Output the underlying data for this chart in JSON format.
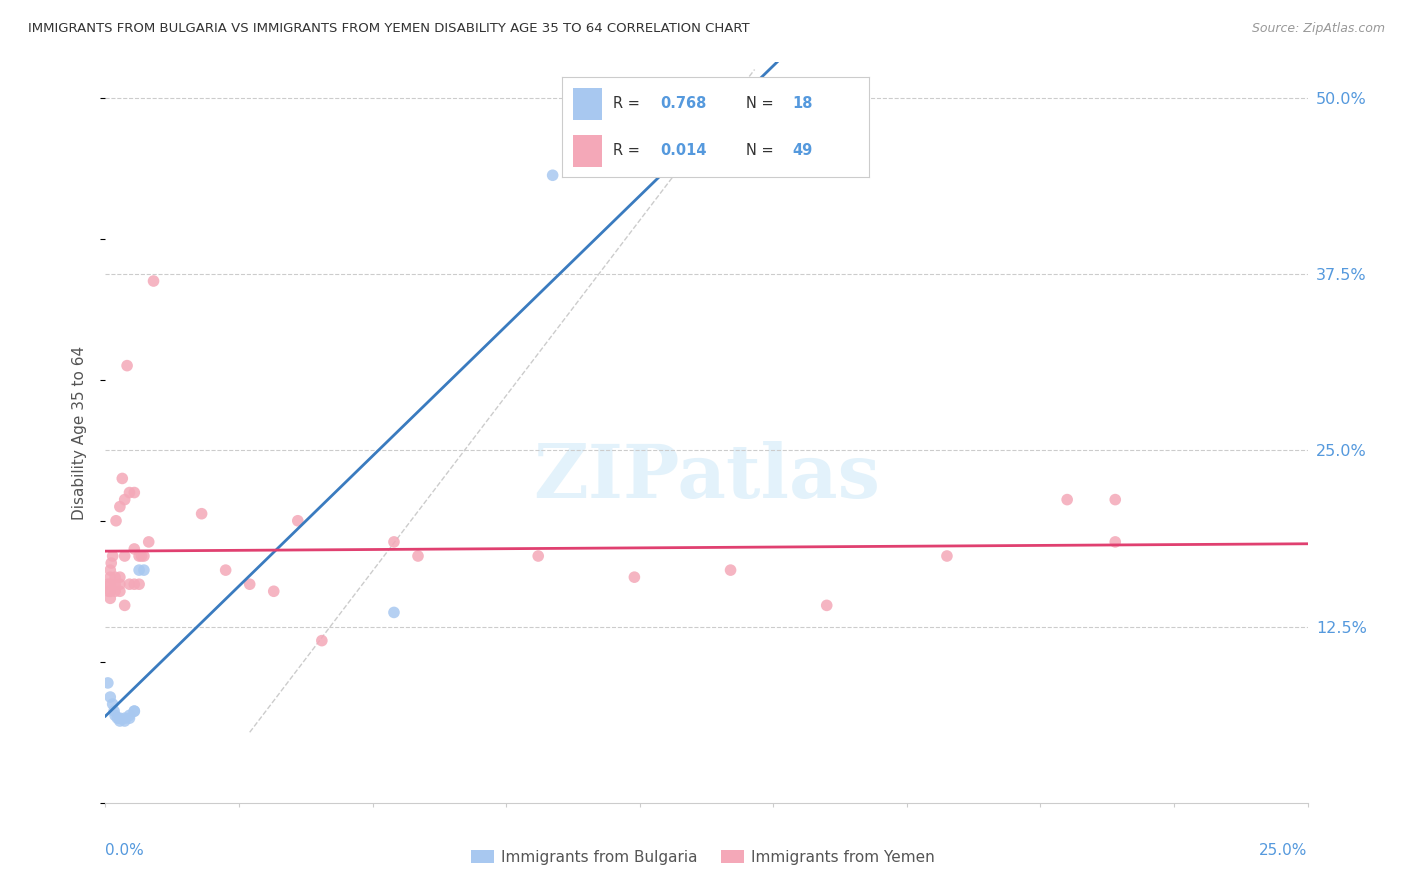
{
  "title": "IMMIGRANTS FROM BULGARIA VS IMMIGRANTS FROM YEMEN DISABILITY AGE 35 TO 64 CORRELATION CHART",
  "source": "Source: ZipAtlas.com",
  "ylabel": "Disability Age 35 to 64",
  "xlim": [
    0.0,
    0.25
  ],
  "ylim": [
    0.0,
    0.525
  ],
  "watermark": "ZIPatlas",
  "bulgaria_color": "#a8c8f0",
  "yemen_color": "#f4a8b8",
  "bulgaria_label": "Immigrants from Bulgaria",
  "yemen_label": "Immigrants from Yemen",
  "bulgaria_line_color": "#3a7bbf",
  "yemen_line_color": "#e04070",
  "axis_label_color": "#5599dd",
  "title_color": "#333333",
  "scatter_size": 70,
  "bulgaria_scatter": [
    [
      0.0005,
      0.085
    ],
    [
      0.001,
      0.075
    ],
    [
      0.0015,
      0.07
    ],
    [
      0.0018,
      0.065
    ],
    [
      0.002,
      0.062
    ],
    [
      0.0025,
      0.06
    ],
    [
      0.003,
      0.058
    ],
    [
      0.003,
      0.06
    ],
    [
      0.004,
      0.058
    ],
    [
      0.004,
      0.06
    ],
    [
      0.005,
      0.06
    ],
    [
      0.005,
      0.062
    ],
    [
      0.006,
      0.065
    ],
    [
      0.006,
      0.065
    ],
    [
      0.007,
      0.165
    ],
    [
      0.008,
      0.165
    ],
    [
      0.06,
      0.135
    ],
    [
      0.093,
      0.445
    ]
  ],
  "yemen_scatter": [
    [
      0.0005,
      0.155
    ],
    [
      0.0007,
      0.15
    ],
    [
      0.001,
      0.145
    ],
    [
      0.001,
      0.15
    ],
    [
      0.001,
      0.155
    ],
    [
      0.001,
      0.16
    ],
    [
      0.001,
      0.165
    ],
    [
      0.0012,
      0.17
    ],
    [
      0.0015,
      0.175
    ],
    [
      0.002,
      0.15
    ],
    [
      0.002,
      0.155
    ],
    [
      0.002,
      0.16
    ],
    [
      0.0022,
      0.2
    ],
    [
      0.003,
      0.15
    ],
    [
      0.003,
      0.155
    ],
    [
      0.003,
      0.16
    ],
    [
      0.003,
      0.21
    ],
    [
      0.0035,
      0.23
    ],
    [
      0.004,
      0.14
    ],
    [
      0.004,
      0.175
    ],
    [
      0.004,
      0.215
    ],
    [
      0.0045,
      0.31
    ],
    [
      0.005,
      0.155
    ],
    [
      0.005,
      0.22
    ],
    [
      0.006,
      0.155
    ],
    [
      0.006,
      0.18
    ],
    [
      0.006,
      0.22
    ],
    [
      0.007,
      0.155
    ],
    [
      0.007,
      0.175
    ],
    [
      0.0075,
      0.175
    ],
    [
      0.008,
      0.175
    ],
    [
      0.009,
      0.185
    ],
    [
      0.01,
      0.37
    ],
    [
      0.02,
      0.205
    ],
    [
      0.025,
      0.165
    ],
    [
      0.03,
      0.155
    ],
    [
      0.035,
      0.15
    ],
    [
      0.04,
      0.2
    ],
    [
      0.045,
      0.115
    ],
    [
      0.06,
      0.185
    ],
    [
      0.065,
      0.175
    ],
    [
      0.09,
      0.175
    ],
    [
      0.11,
      0.16
    ],
    [
      0.13,
      0.165
    ],
    [
      0.15,
      0.14
    ],
    [
      0.175,
      0.175
    ],
    [
      0.2,
      0.215
    ],
    [
      0.21,
      0.185
    ],
    [
      0.21,
      0.215
    ]
  ],
  "ytick_values": [
    0.125,
    0.25,
    0.375,
    0.5
  ],
  "ytick_labels": [
    "12.5%",
    "25.0%",
    "37.5%",
    "50.0%"
  ],
  "xtick_label_left": "0.0%",
  "xtick_label_right": "25.0%"
}
